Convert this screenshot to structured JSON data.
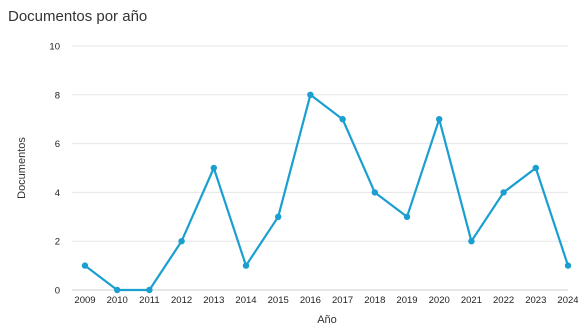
{
  "chart_data": {
    "type": "line",
    "title": "Documentos por año",
    "xlabel": "Año",
    "ylabel": "Documentos",
    "categories": [
      "2009",
      "2010",
      "2011",
      "2012",
      "2013",
      "2014",
      "2015",
      "2016",
      "2017",
      "2018",
      "2019",
      "2020",
      "2021",
      "2022",
      "2023",
      "2024"
    ],
    "series": [
      {
        "values": [
          1,
          0,
          0,
          2,
          5,
          1,
          3,
          8,
          7,
          4,
          3,
          7,
          2,
          4,
          5,
          1
        ]
      }
    ],
    "ylim": [
      0,
      10
    ],
    "yticks": [
      0,
      2,
      4,
      6,
      8,
      10
    ],
    "grid": true,
    "legend": "none",
    "colors": {
      "line": "#1a9fd0",
      "grid": "#e6e6e6",
      "axis": "#cccccc"
    }
  }
}
